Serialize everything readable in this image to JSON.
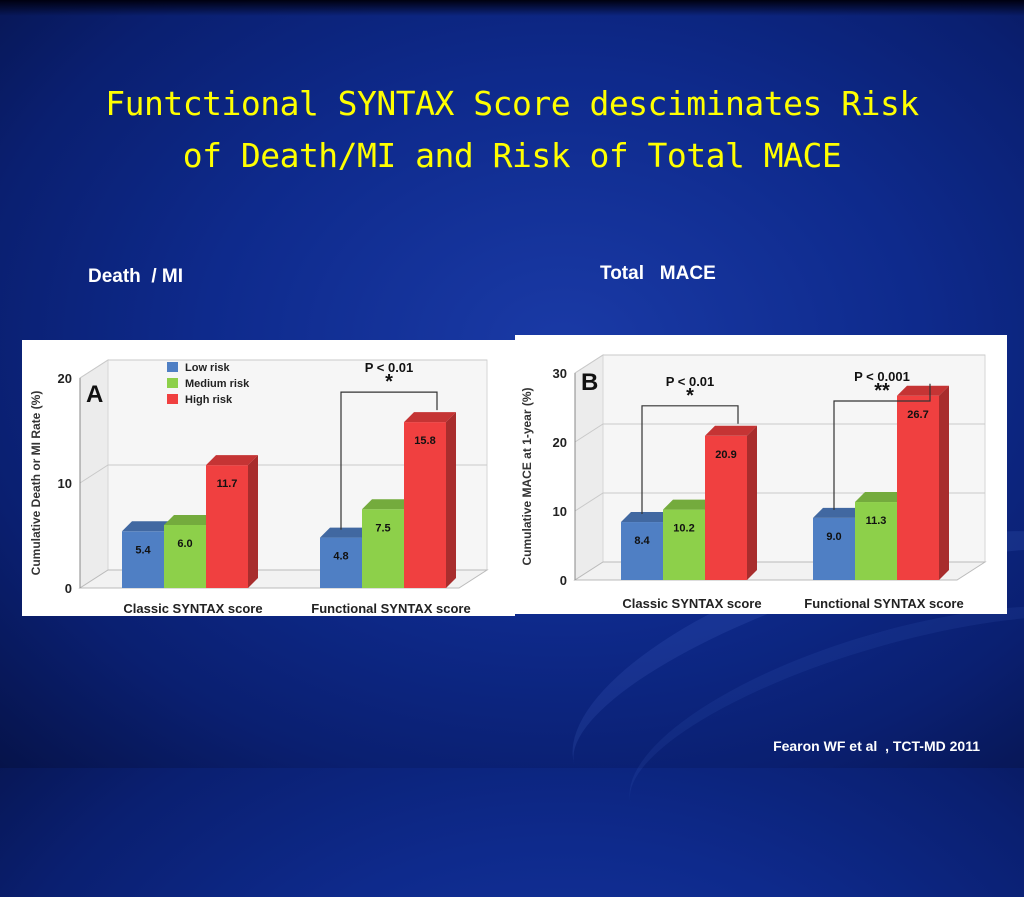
{
  "slide": {
    "title": "Funtctional SYNTAX Score desciminates Risk\nof Death/MI  and  Risk  of Total MACE",
    "left_label": "Death  / MI",
    "right_label": "Total   MACE",
    "citation": "Fearon WF et al  , TCT-MD 2011"
  },
  "colors": {
    "title": "#ffff00",
    "low": "#4f7fc4",
    "medium": "#8dd04a",
    "high": "#f04040"
  },
  "chart_data": [
    {
      "type": "bar",
      "panel_letter": "A",
      "ylabel": "Cumulative Death or MI Rate (%)",
      "ylim": [
        0,
        20
      ],
      "yticks": [
        0,
        10,
        20
      ],
      "categories": [
        "Classic SYNTAX score",
        "Functional SYNTAX score"
      ],
      "series": [
        {
          "name": "Low risk",
          "values": [
            5.4,
            4.8
          ]
        },
        {
          "name": "Medium risk",
          "values": [
            6.0,
            7.5
          ]
        },
        {
          "name": "High risk",
          "values": [
            11.7,
            15.8
          ]
        }
      ],
      "data_labels": [
        [
          "5.4",
          "6.0",
          "11.7"
        ],
        [
          "4.8",
          "7.5",
          "15.8"
        ]
      ],
      "legend": "top-left",
      "annotations": [
        {
          "category": "Functional SYNTAX score",
          "p_text": "P < 0.01",
          "stars": "*"
        }
      ]
    },
    {
      "type": "bar",
      "panel_letter": "B",
      "ylabel": "Cumulative MACE at 1-year (%)",
      "ylim": [
        0,
        30
      ],
      "yticks": [
        0,
        10,
        20,
        30
      ],
      "categories": [
        "Classic SYNTAX score",
        "Functional SYNTAX score"
      ],
      "series": [
        {
          "values": [
            8.4,
            9.0
          ]
        },
        {
          "values": [
            10.2,
            11.3
          ]
        },
        {
          "values": [
            20.9,
            26.7
          ]
        }
      ],
      "data_labels": [
        [
          "8.4",
          "10.2",
          "20.9"
        ],
        [
          "9.0",
          "11.3",
          "26.7"
        ]
      ],
      "annotations": [
        {
          "category": "Classic SYNTAX score",
          "p_text": "P < 0.01",
          "stars": "*"
        },
        {
          "category": "Functional SYNTAX score",
          "p_text": "P < 0.001",
          "stars": "**"
        }
      ]
    }
  ]
}
